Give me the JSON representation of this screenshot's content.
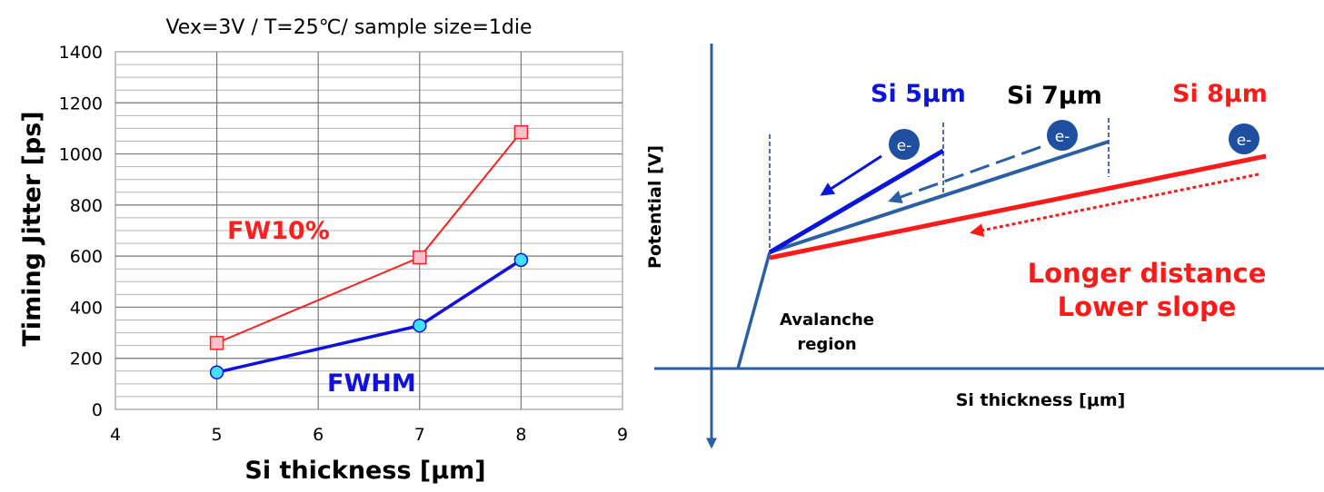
{
  "chart_data": [
    {
      "type": "line",
      "title": "Vex=3V / T=25℃/ sample size=1die",
      "xlabel": "Si thickness [μm]",
      "ylabel": "Timing Jitter [ps]",
      "xlim": [
        4,
        9
      ],
      "ylim": [
        0,
        1400
      ],
      "x_ticks": [
        "4",
        "5",
        "6",
        "7",
        "8",
        "9"
      ],
      "y_ticks": [
        "0",
        "200",
        "400",
        "600",
        "800",
        "1000",
        "1200",
        "1400"
      ],
      "grid": true,
      "series": [
        {
          "name": "FW10%",
          "color": "#ff2020",
          "marker": "square",
          "x": [
            5,
            7,
            8
          ],
          "y": [
            260,
            595,
            1085
          ]
        },
        {
          "name": "FWHM",
          "color": "#1010e0",
          "marker": "circle",
          "x": [
            5,
            7,
            8
          ],
          "y": [
            145,
            328,
            585
          ]
        }
      ]
    },
    {
      "type": "diagram",
      "xlabel": "Si thickness [μm]",
      "ylabel": "Potential [V]",
      "annotations": {
        "si5": "Si 5μm",
        "si7": "Si 7μm",
        "si8": "Si 8μm",
        "electron": "e-",
        "avalanche_line1": "Avalanche",
        "avalanche_line2": "region",
        "conclusion_line1": "Longer distance",
        "conclusion_line2": "Lower slope"
      },
      "colors": {
        "si5": "#0a14dc",
        "si7": "#2a5ea6",
        "si8": "#ff1a1a",
        "axis": "#2a5ea6"
      }
    }
  ]
}
